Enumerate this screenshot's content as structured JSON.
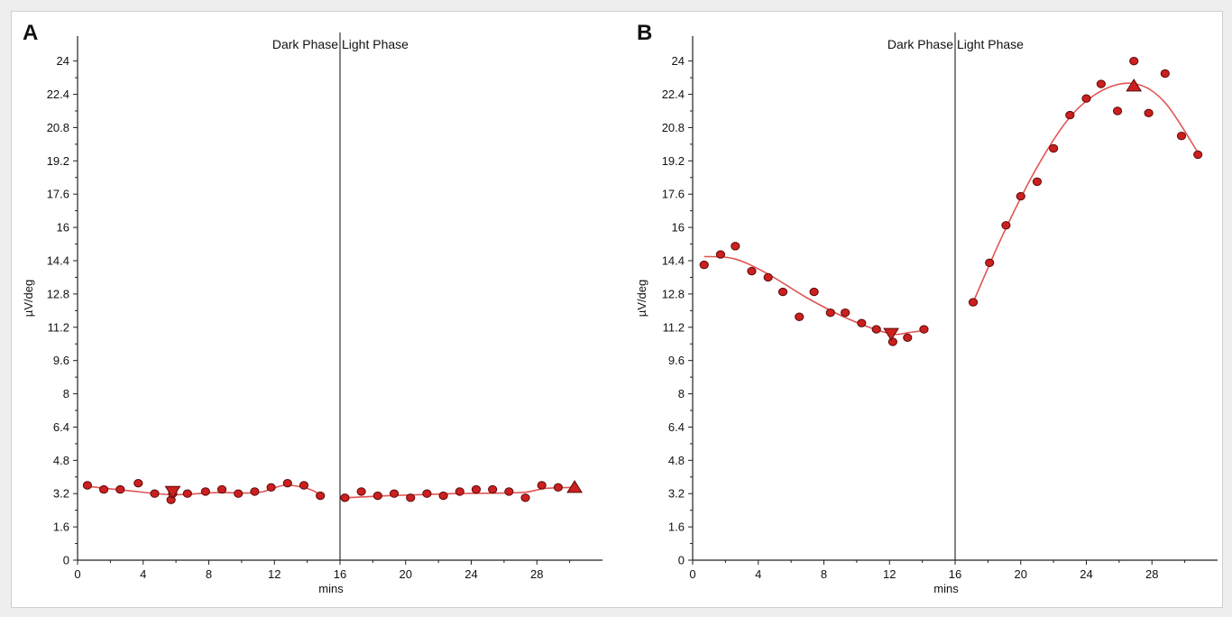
{
  "colors": {
    "marker_fill": "#cc1f1f",
    "marker_stroke": "#5a0a0a",
    "fit_line": "#e05555",
    "axis": "#222222",
    "divider": "#333333"
  },
  "chart_data": [
    {
      "type": "scatter",
      "panel_label": "A",
      "xlabel": "mins",
      "ylabel": "µV/deg",
      "xlim": [
        0,
        32
      ],
      "ylim": [
        0,
        25.2
      ],
      "x_ticks": [
        "0",
        "4",
        "8",
        "12",
        "16",
        "20",
        "24",
        "28"
      ],
      "y_ticks": [
        "0",
        "1.6",
        "3.2",
        "4.8",
        "6.4",
        "8",
        "9.6",
        "11.2",
        "12.8",
        "14.4",
        "16",
        "17.6",
        "19.2",
        "20.8",
        "22.4",
        "24"
      ],
      "divider_x": 16,
      "phase_labels": {
        "left": "Dark Phase",
        "right": "Light Phase"
      },
      "series": [
        {
          "name": "Dark Phase",
          "x": [
            0.6,
            1.6,
            2.6,
            3.7,
            4.7,
            5.7,
            5.8,
            6.7,
            7.8,
            8.8,
            9.8,
            10.8,
            11.8,
            12.8,
            13.8,
            14.8
          ],
          "y": [
            3.6,
            3.4,
            3.4,
            3.7,
            3.2,
            2.9,
            3.2,
            3.2,
            3.3,
            3.4,
            3.2,
            3.3,
            3.5,
            3.7,
            3.6,
            3.1
          ],
          "fit": [
            [
              0.6,
              3.55
            ],
            [
              3.0,
              3.35
            ],
            [
              5.8,
              3.15
            ],
            [
              8.5,
              3.25
            ],
            [
              11.0,
              3.25
            ],
            [
              12.6,
              3.6
            ],
            [
              14.0,
              3.45
            ],
            [
              14.8,
              3.15
            ]
          ],
          "extremum": {
            "kind": "min",
            "x": 5.8,
            "y": 3.3
          }
        },
        {
          "name": "Light Phase",
          "x": [
            16.3,
            17.3,
            18.3,
            19.3,
            20.3,
            21.3,
            22.3,
            23.3,
            24.3,
            25.3,
            26.3,
            27.3,
            28.3,
            29.3
          ],
          "y": [
            3.0,
            3.3,
            3.1,
            3.2,
            3.0,
            3.2,
            3.1,
            3.3,
            3.4,
            3.4,
            3.3,
            3.0,
            3.6,
            3.5
          ],
          "fit": [
            [
              16.3,
              3.0
            ],
            [
              19.0,
              3.1
            ],
            [
              23.0,
              3.2
            ],
            [
              27.0,
              3.25
            ],
            [
              28.5,
              3.45
            ],
            [
              30.3,
              3.5
            ]
          ],
          "extremum": {
            "kind": "max",
            "x": 30.3,
            "y": 3.5
          }
        }
      ]
    },
    {
      "type": "scatter",
      "panel_label": "B",
      "xlabel": "mins",
      "ylabel": "µV/deg",
      "xlim": [
        0,
        32
      ],
      "ylim": [
        0,
        25.2
      ],
      "x_ticks": [
        "0",
        "4",
        "8",
        "12",
        "16",
        "20",
        "24",
        "28"
      ],
      "y_ticks": [
        "0",
        "1.6",
        "3.2",
        "4.8",
        "6.4",
        "8",
        "9.6",
        "11.2",
        "12.8",
        "14.4",
        "16",
        "17.6",
        "19.2",
        "20.8",
        "22.4",
        "24"
      ],
      "divider_x": 16,
      "phase_labels": {
        "left": "Dark Phase",
        "right": "Light Phase"
      },
      "series": [
        {
          "name": "Dark Phase",
          "x": [
            0.7,
            1.7,
            2.6,
            3.6,
            4.6,
            5.5,
            6.5,
            7.4,
            8.4,
            9.3,
            10.3,
            11.2,
            12.2,
            13.1,
            14.1
          ],
          "y": [
            14.2,
            14.7,
            15.1,
            13.9,
            13.6,
            12.9,
            11.7,
            12.9,
            11.9,
            11.9,
            11.4,
            11.1,
            10.5,
            10.7,
            11.1
          ],
          "fit": [
            [
              0.7,
              14.6
            ],
            [
              2.5,
              14.5
            ],
            [
              4.5,
              13.8
            ],
            [
              7.0,
              12.6
            ],
            [
              9.5,
              11.6
            ],
            [
              12.0,
              10.9
            ],
            [
              13.2,
              10.95
            ],
            [
              14.1,
              11.05
            ]
          ],
          "extremum": {
            "kind": "min",
            "x": 12.1,
            "y": 10.9
          }
        },
        {
          "name": "Light Phase",
          "x": [
            17.1,
            18.1,
            19.1,
            20.0,
            21.0,
            22.0,
            23.0,
            24.0,
            24.9,
            25.9,
            26.9,
            27.8,
            28.8,
            29.8,
            30.8
          ],
          "y": [
            12.4,
            14.3,
            16.1,
            17.5,
            18.2,
            19.8,
            21.4,
            22.2,
            22.9,
            21.6,
            24.0,
            21.5,
            23.4,
            20.4,
            19.5
          ],
          "fit": [
            [
              17.1,
              12.4
            ],
            [
              19.0,
              15.8
            ],
            [
              21.0,
              18.9
            ],
            [
              23.0,
              21.3
            ],
            [
              25.0,
              22.6
            ],
            [
              27.0,
              22.9
            ],
            [
              28.8,
              22.0
            ],
            [
              30.8,
              19.6
            ]
          ],
          "extremum": {
            "kind": "max",
            "x": 26.9,
            "y": 22.8
          }
        }
      ]
    }
  ]
}
